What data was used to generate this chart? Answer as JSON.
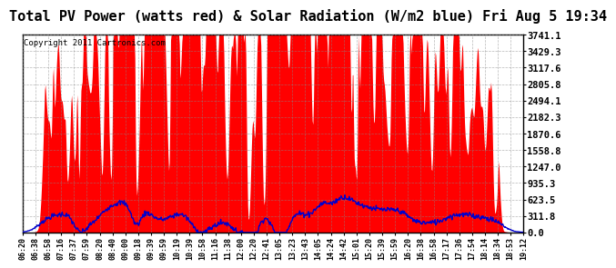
{
  "title": "Total PV Power (watts red) & Solar Radiation (W/m2 blue) Fri Aug 5 19:34",
  "copyright_text": "Copyright 2011 Cartronics.com",
  "y_ticks": [
    0.0,
    311.8,
    623.5,
    935.3,
    1247.0,
    1558.8,
    1870.6,
    2182.3,
    2494.1,
    2805.8,
    3117.6,
    3429.3,
    3741.1
  ],
  "y_max": 3741.1,
  "y_min": 0.0,
  "background_color": "#ffffff",
  "plot_bg_color": "#ffffff",
  "grid_color": "#888888",
  "red_color": "#ff0000",
  "blue_color": "#0000cc",
  "title_fontsize": 11,
  "x_labels": [
    "06:20",
    "06:38",
    "06:58",
    "07:16",
    "07:37",
    "07:59",
    "08:20",
    "08:40",
    "09:00",
    "09:18",
    "09:39",
    "09:59",
    "10:19",
    "10:39",
    "10:58",
    "11:16",
    "11:38",
    "12:00",
    "12:20",
    "12:41",
    "13:05",
    "13:23",
    "13:43",
    "14:05",
    "14:24",
    "14:42",
    "15:01",
    "15:20",
    "15:39",
    "15:59",
    "16:20",
    "16:38",
    "16:58",
    "17:17",
    "17:36",
    "17:54",
    "18:14",
    "18:34",
    "18:53",
    "19:12"
  ]
}
